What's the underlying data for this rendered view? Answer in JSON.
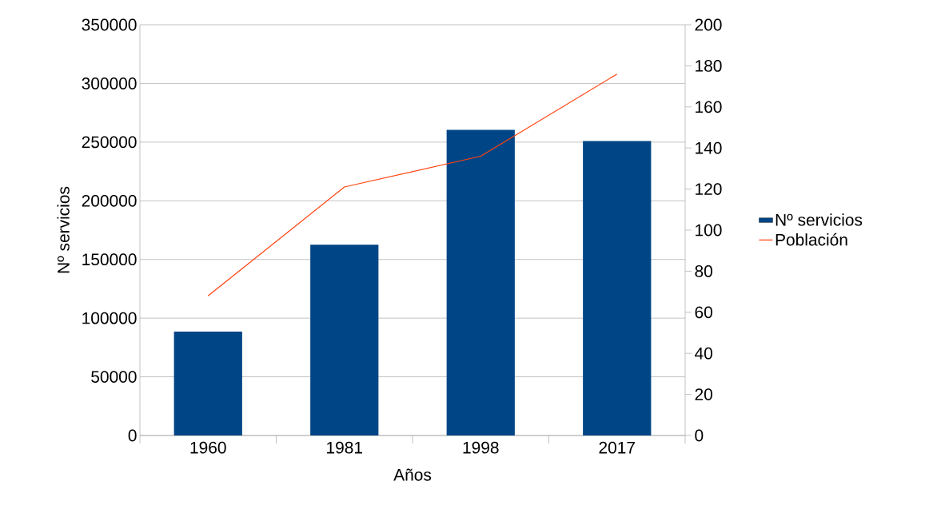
{
  "chart_data": {
    "type": "bar",
    "xlabel": "Años",
    "ylabel": "Nº servicios",
    "categories": [
      "1960",
      "1981",
      "1998",
      "2017"
    ],
    "series": [
      {
        "name": "Nº servicios",
        "color": "#004586",
        "values": [
          88500,
          162500,
          260500,
          251000
        ]
      },
      {
        "name": "Población",
        "type": "line",
        "axis": "y2",
        "color": "#ff420e",
        "values": [
          68,
          121,
          136,
          176
        ]
      }
    ],
    "ylim": [
      0,
      350000
    ],
    "yticks": [
      0,
      50000,
      100000,
      150000,
      200000,
      250000,
      300000,
      350000
    ],
    "y2lim": [
      0,
      200
    ],
    "y2ticks": [
      0,
      20,
      40,
      60,
      80,
      100,
      120,
      140,
      160,
      180,
      200
    ],
    "grid": "y",
    "legend": "right",
    "marker": "none",
    "line_style": "solid"
  }
}
